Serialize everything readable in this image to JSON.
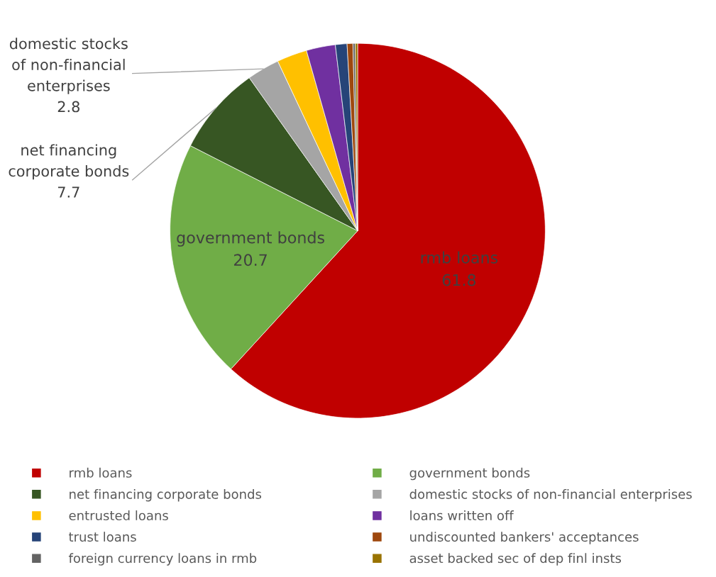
{
  "chart_data": {
    "type": "pie",
    "categories": [
      "rmb loans",
      "government bonds",
      "net financing corporate bonds",
      "domestic stocks of non-financial enterprises",
      "entrusted loans",
      "loans written off",
      "trust loans",
      "undiscounted bankers' acceptances",
      "foreign currency loans in rmb",
      "asset backed sec of dep finl insts"
    ],
    "values": [
      61.8,
      20.7,
      7.7,
      2.8,
      2.6,
      2.5,
      1.0,
      0.5,
      0.2,
      0.2
    ],
    "colors": [
      "#c00000",
      "#70ad47",
      "#375623",
      "#a5a5a5",
      "#ffc000",
      "#7030a0",
      "#264478",
      "#9e480e",
      "#636363",
      "#997300"
    ],
    "value_labels": [
      "61.8",
      "20.7",
      "7.7",
      "2.8",
      null,
      null,
      null,
      null,
      null,
      null
    ],
    "legend": "bottom"
  }
}
